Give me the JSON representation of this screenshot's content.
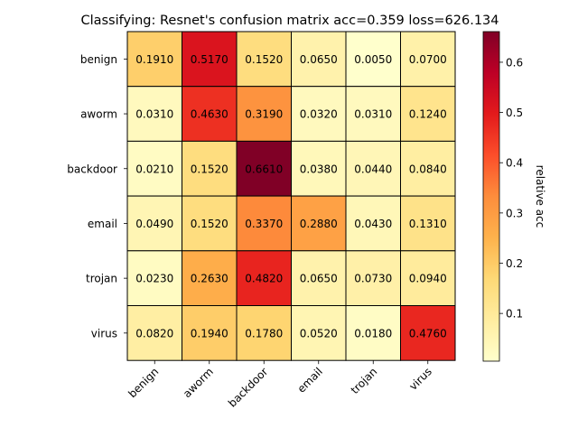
{
  "chart_data": {
    "type": "heatmap",
    "title": "Classifying: Resnet's confusion matrix acc=0.359 loss=626.134",
    "xlabel": "",
    "ylabel": "",
    "row_labels": [
      "benign",
      "aworm",
      "backdoor",
      "email",
      "trojan",
      "virus"
    ],
    "col_labels": [
      "benign",
      "aworm",
      "backdoor",
      "email",
      "trojan",
      "virus"
    ],
    "values": [
      [
        0.191,
        0.517,
        0.152,
        0.065,
        0.005,
        0.07
      ],
      [
        0.031,
        0.463,
        0.319,
        0.032,
        0.031,
        0.124
      ],
      [
        0.021,
        0.152,
        0.661,
        0.038,
        0.044,
        0.084
      ],
      [
        0.049,
        0.152,
        0.337,
        0.288,
        0.043,
        0.131
      ],
      [
        0.023,
        0.263,
        0.482,
        0.065,
        0.073,
        0.094
      ],
      [
        0.082,
        0.194,
        0.178,
        0.052,
        0.018,
        0.476
      ]
    ],
    "value_format_decimals": 4,
    "colormap": "YlOrRd",
    "colorbar": {
      "label": "relative acc",
      "vmin": 0.005,
      "vmax": 0.661,
      "ticks": [
        0.1,
        0.2,
        0.3,
        0.4,
        0.5,
        0.6
      ],
      "tick_labels": [
        "0.1",
        "0.2",
        "0.3",
        "0.4",
        "0.5",
        "0.6"
      ]
    },
    "cell_border_color": "#000000",
    "grid": false
  }
}
